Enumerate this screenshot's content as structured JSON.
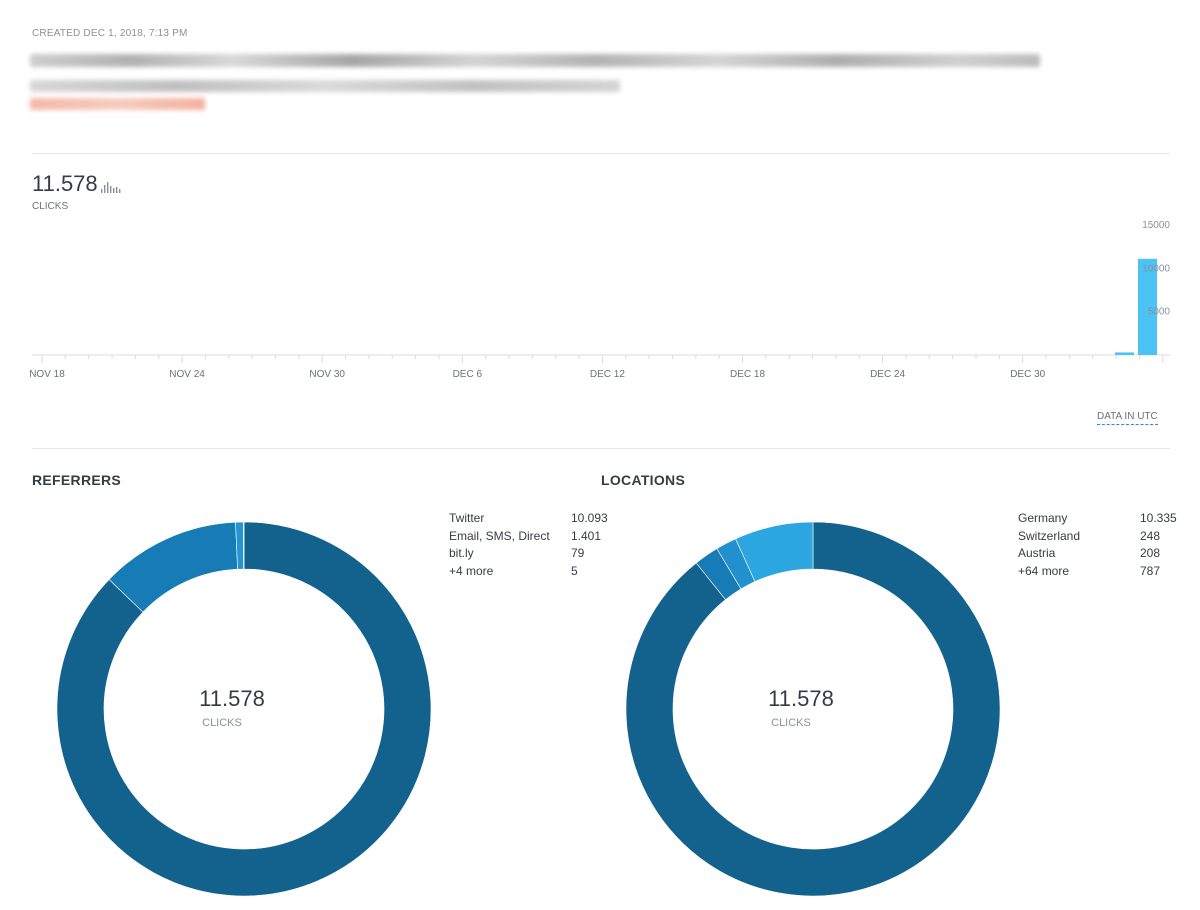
{
  "header": {
    "created": "CREATED DEC 1, 2018, 7:13 PM"
  },
  "summary": {
    "total": "11.578",
    "label": "CLICKS"
  },
  "chart_data": [
    {
      "type": "bar",
      "x_tick_labels": [
        "NOV 18",
        "NOV 24",
        "NOV 30",
        "DEC 6",
        "DEC 12",
        "DEC 18",
        "DEC 24",
        "DEC 30"
      ],
      "y_tick_labels": [
        "15000",
        "10000",
        "5000"
      ],
      "ylim": [
        0,
        15000
      ],
      "bars": [
        {
          "position": "second-to-last day",
          "value": 300
        },
        {
          "position": "last day",
          "value": 11100
        }
      ],
      "bar_color": "#4cc3f5",
      "note": "DATA IN UTC"
    },
    {
      "type": "pie",
      "title": "REFERRERS",
      "center_value": "11.578",
      "center_label": "CLICKS",
      "labels": [
        "Twitter",
        "Email, SMS, Direct",
        "bit.ly",
        "+4 more"
      ],
      "display_values": [
        "10.093",
        "1.401",
        "79",
        "5"
      ],
      "values": [
        10093,
        1401,
        79,
        5
      ],
      "colors": [
        "#13628d",
        "#177cb6",
        "#2196d2",
        "#2aa3e0"
      ]
    },
    {
      "type": "pie",
      "title": "LOCATIONS",
      "center_value": "11.578",
      "center_label": "CLICKS",
      "labels": [
        "Germany",
        "Switzerland",
        "Austria",
        "+64 more"
      ],
      "display_values": [
        "10.335",
        "248",
        "208",
        "787"
      ],
      "values": [
        10335,
        248,
        208,
        787
      ],
      "colors": [
        "#13628d",
        "#177cb6",
        "#2190cd",
        "#2ba6e0"
      ]
    }
  ]
}
